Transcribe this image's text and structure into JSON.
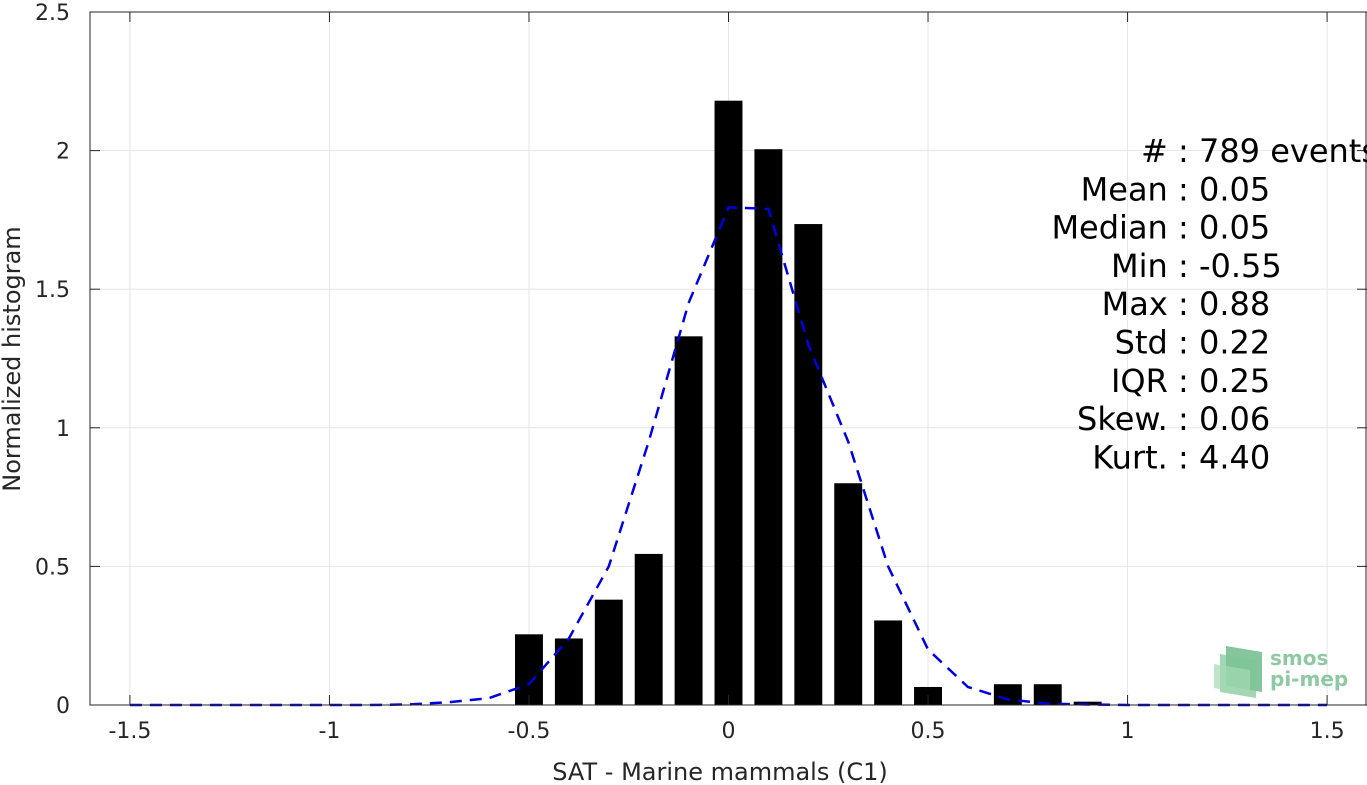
{
  "chart_data": {
    "type": "bar",
    "xlabel": "SAT - Marine mammals (C1)",
    "ylabel": "Normalized histogram",
    "xlim": [
      -1.6,
      1.6
    ],
    "ylim": [
      0,
      2.5
    ],
    "xticks": [
      -1.5,
      -1,
      -0.5,
      0,
      0.5,
      1,
      1.5
    ],
    "xtick_labels": [
      "-1.5",
      "-1",
      "-0.5",
      "0",
      "0.5",
      "1",
      "1.5"
    ],
    "yticks": [
      0,
      0.5,
      1,
      1.5,
      2,
      2.5
    ],
    "ytick_labels": [
      "0",
      "0.5",
      "1",
      "1.5",
      "2",
      "2.5"
    ],
    "grid": true,
    "bar_width": 0.07,
    "colors": {
      "bars": "#000000",
      "fit": "#0000dd",
      "grid": "#e6e6e6",
      "axis": "#262626"
    },
    "bars": {
      "x": [
        -0.5,
        -0.4,
        -0.3,
        -0.2,
        -0.1,
        0.0,
        0.1,
        0.2,
        0.3,
        0.4,
        0.5,
        0.7,
        0.8,
        0.9
      ],
      "values": [
        0.255,
        0.24,
        0.38,
        0.545,
        1.33,
        2.18,
        2.005,
        1.735,
        0.8,
        0.305,
        0.065,
        0.075,
        0.075,
        0.012
      ]
    },
    "fit_line": {
      "style": "dashed",
      "x": [
        -1.5,
        -1.4,
        -1.3,
        -1.2,
        -1.1,
        -1.0,
        -0.9,
        -0.8,
        -0.7,
        -0.6,
        -0.5,
        -0.4,
        -0.3,
        -0.2,
        -0.1,
        0.0,
        0.1,
        0.2,
        0.3,
        0.4,
        0.5,
        0.6,
        0.7,
        0.8,
        0.9,
        1.0,
        1.1,
        1.2,
        1.3,
        1.4,
        1.5
      ],
      "y": [
        0,
        0,
        0,
        0,
        0,
        0,
        0,
        0.002,
        0.01,
        0.025,
        0.075,
        0.24,
        0.5,
        0.95,
        1.45,
        1.795,
        1.79,
        1.3,
        0.95,
        0.5,
        0.2,
        0.065,
        0.02,
        0.005,
        0.002,
        0,
        0,
        0,
        0,
        0,
        0
      ]
    },
    "stats": [
      {
        "label": "#  : 789 events"
      },
      {
        "label": "Mean : 0.05"
      },
      {
        "label": "Median : 0.05"
      },
      {
        "label": "Min : -0.55"
      },
      {
        "label": "Max : 0.88"
      },
      {
        "label": "Std : 0.22"
      },
      {
        "label": "IQR : 0.25"
      },
      {
        "label": "Skew. : 0.06"
      },
      {
        "label": "Kurt. : 4.40"
      }
    ]
  },
  "logo": {
    "line1": "smos",
    "line2": "pi-mep",
    "color": "#8fc9a3"
  }
}
